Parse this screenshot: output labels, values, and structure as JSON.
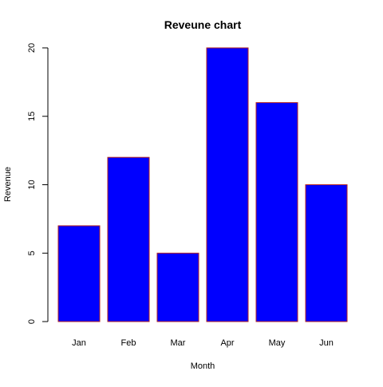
{
  "chart_data": {
    "type": "bar",
    "title": "Reveune chart",
    "xlabel": "Month",
    "ylabel": "Revenue",
    "categories": [
      "Jan",
      "Feb",
      "Mar",
      "Apr",
      "May",
      "Jun"
    ],
    "values": [
      7,
      12,
      5,
      20,
      16,
      10
    ],
    "ylim": [
      0,
      20
    ],
    "yticks": [
      0,
      5,
      10,
      15,
      20
    ],
    "grid": false,
    "bar_fill_color": "#0000ff",
    "bar_border_color": "#b22222"
  }
}
